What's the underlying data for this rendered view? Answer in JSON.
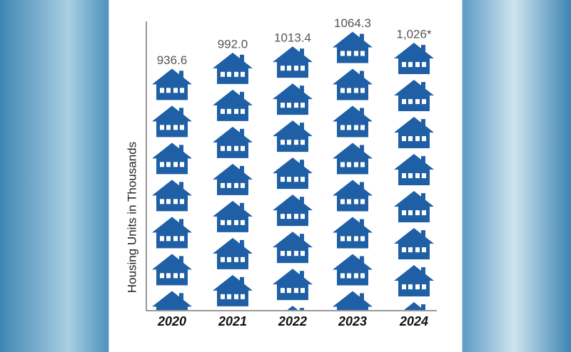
{
  "chart_data": {
    "type": "pictograph",
    "y_label": "Housing Units in Thousands",
    "categories": [
      "2020",
      "2021",
      "2022",
      "2023",
      "2024"
    ],
    "values": [
      936.6,
      992.0,
      1013.4,
      1064.3,
      1026
    ],
    "value_labels": [
      "936.6",
      "992.0",
      "1013.4",
      "1064.3",
      "1,026*"
    ],
    "color": "#1f5fa6",
    "ylim": [
      100,
      1100
    ]
  }
}
